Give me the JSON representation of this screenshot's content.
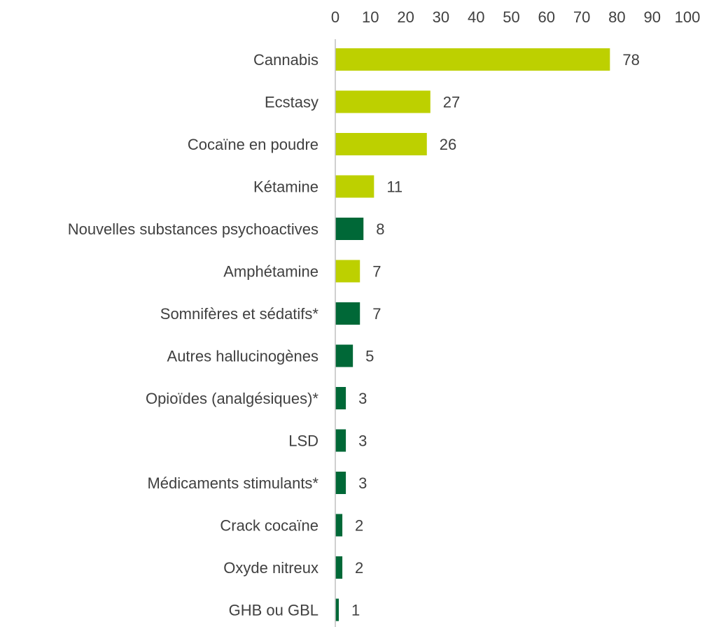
{
  "chart_data": {
    "type": "bar",
    "orientation": "horizontal",
    "title": "",
    "xlabel": "",
    "ylabel": "",
    "xlim": [
      0,
      100
    ],
    "x_ticks": [
      "0",
      "10",
      "20",
      "30",
      "40",
      "50",
      "60",
      "70",
      "80",
      "90",
      "100"
    ],
    "x_axis_position": "top",
    "grid": false,
    "legend": "none",
    "colors": {
      "light_green": "#bdd000",
      "dark_green": "#006837",
      "axis": "#bfbfbf",
      "text": "#404040"
    },
    "categories": [
      "Cannabis",
      "Ecstasy",
      "Cocaïne en poudre",
      "Kétamine",
      "Nouvelles substances psychoactives",
      "Amphétamine",
      "Somnifères et sédatifs*",
      "Autres hallucinogènes",
      "Opioïdes (analgésiques)*",
      "LSD",
      "Médicaments stimulants*",
      "Crack cocaïne",
      "Oxyde nitreux",
      "GHB ou GBL"
    ],
    "values": [
      78,
      27,
      26,
      11,
      8,
      7,
      7,
      5,
      3,
      3,
      3,
      2,
      2,
      1
    ],
    "value_labels": [
      "78",
      "27",
      "26",
      "11",
      "8",
      "7",
      "7",
      "5",
      "3",
      "3",
      "3",
      "2",
      "2",
      "1"
    ],
    "bar_colors": [
      "light_green",
      "light_green",
      "light_green",
      "light_green",
      "dark_green",
      "light_green",
      "dark_green",
      "dark_green",
      "dark_green",
      "dark_green",
      "dark_green",
      "dark_green",
      "dark_green",
      "dark_green"
    ]
  }
}
